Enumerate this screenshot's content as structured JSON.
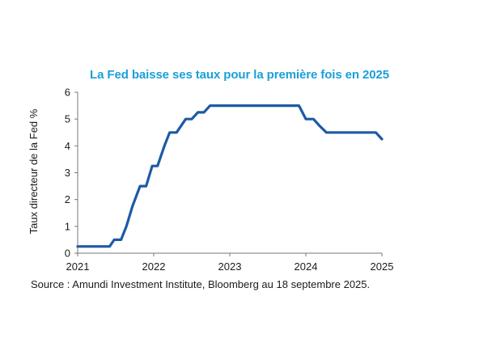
{
  "chart_data": {
    "type": "line",
    "title": "La Fed baisse ses taux pour la première fois en 2025",
    "ylabel": "Taux directeur de la Fed %",
    "xlabel": "",
    "xlim": [
      2021.0,
      2025.0
    ],
    "ylim": [
      0,
      6
    ],
    "x_ticks": [
      "2021",
      "2022",
      "2023",
      "2024",
      "2025"
    ],
    "y_ticks": [
      "0",
      "1",
      "2",
      "3",
      "4",
      "5",
      "6"
    ],
    "grid": false,
    "legend": "none",
    "line_color": "#1d5aa6",
    "series": [
      {
        "x": [
          2021.0,
          2021.42,
          2021.48,
          2021.57,
          2021.64,
          2021.72,
          2021.82,
          2021.9,
          2021.98,
          2022.05,
          2022.14,
          2022.21,
          2022.3,
          2022.42,
          2022.5,
          2022.58,
          2022.66,
          2022.74,
          2022.83,
          2023.0,
          2023.5,
          2023.75,
          2023.91,
          2024.0,
          2024.1,
          2024.18,
          2024.27,
          2024.5,
          2024.75,
          2024.92,
          2025.0
        ],
        "y": [
          0.25,
          0.25,
          0.5,
          0.5,
          1.0,
          1.75,
          2.5,
          2.5,
          3.25,
          3.25,
          4.0,
          4.5,
          4.5,
          5.0,
          5.0,
          5.25,
          5.25,
          5.5,
          5.5,
          5.5,
          5.5,
          5.5,
          5.5,
          5.0,
          5.0,
          4.75,
          4.5,
          4.5,
          4.5,
          4.5,
          4.25
        ]
      }
    ]
  },
  "source": "Source : Amundi Investment Institute, Bloomberg au 18 septembre 2025."
}
